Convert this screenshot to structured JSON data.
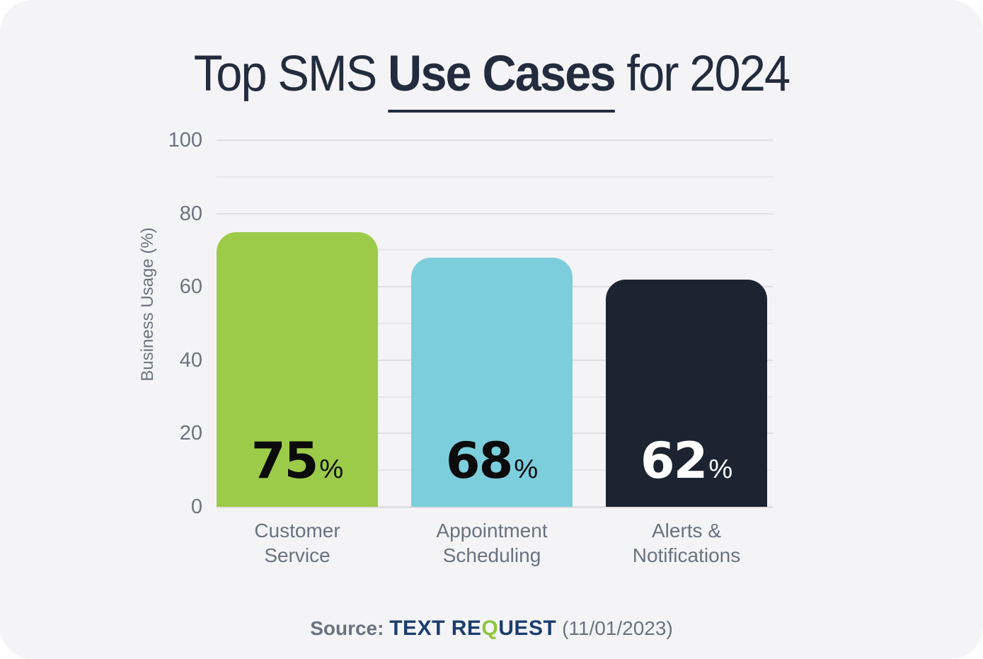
{
  "page": {
    "background": "#ffffff",
    "card_background": "#f4f4f6"
  },
  "title": {
    "prefix": "Top SMS ",
    "emphasis": "Use Cases",
    "suffix": " for 2024",
    "color": "#232c3e"
  },
  "chart_data": {
    "type": "bar",
    "title": "Top SMS Use Cases for 2024",
    "categories": [
      "Customer Service",
      "Appointment Scheduling",
      "Alerts & Notifications"
    ],
    "category_lines": [
      [
        "Customer",
        "Service"
      ],
      [
        "Appointment",
        "Scheduling"
      ],
      [
        "Alerts &",
        "Notifications"
      ]
    ],
    "values": [
      75,
      68,
      62
    ],
    "unit": "%",
    "xlabel": "",
    "ylabel": "Business Usage (%)",
    "ylim": [
      0,
      100
    ],
    "yticks": [
      0,
      20,
      40,
      60,
      80,
      100
    ],
    "gridline_step": 10,
    "grid": "horizontal",
    "legend": "none",
    "bar_colors": [
      "#9ccb49",
      "#7ccedd",
      "#1d2431"
    ],
    "value_label_colors": [
      "#0b0b0b",
      "#0b0b0b",
      "#ffffff"
    ],
    "tick_color": "#6d7280",
    "gridline_color": "#e7e7ea"
  },
  "source": {
    "label": "Source:",
    "brand_pre": "TEXT RE",
    "brand_q": "Q",
    "brand_post": "UEST",
    "date": "(11/01/2023)",
    "brand_color": "#1c3e6d",
    "q_color": "#8dc63f"
  }
}
